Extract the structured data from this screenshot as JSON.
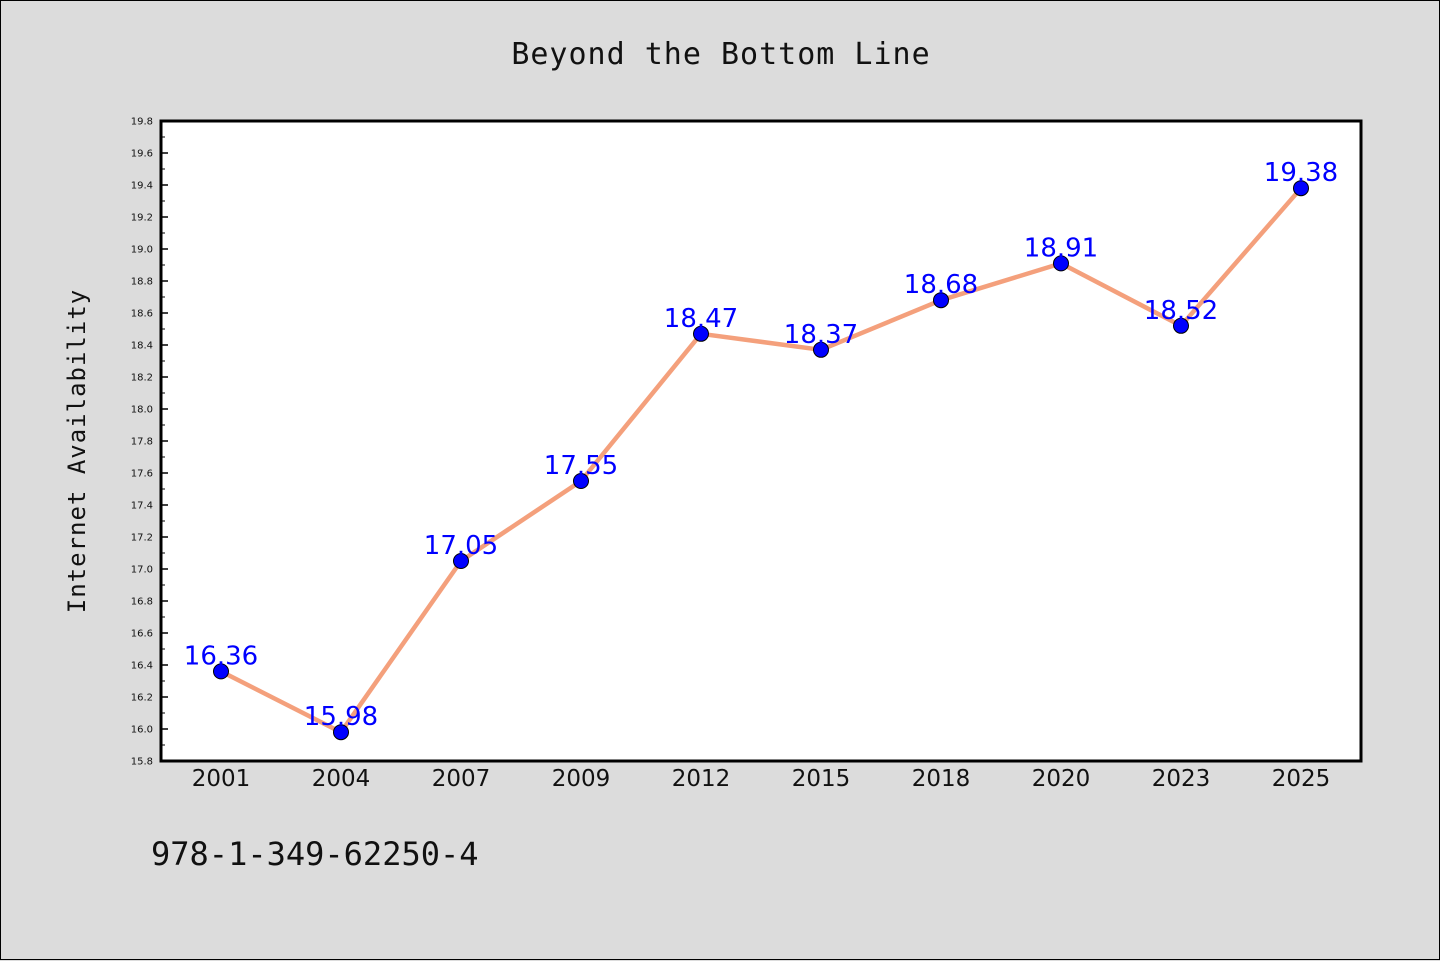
{
  "chart_data": {
    "type": "line",
    "title": "Beyond the Bottom Line",
    "xlabel": "",
    "ylabel": "Internet Availability",
    "categories": [
      "2001",
      "2004",
      "2007",
      "2009",
      "2012",
      "2015",
      "2018",
      "2020",
      "2023",
      "2025"
    ],
    "series": [
      {
        "values": [
          16.36,
          15.98,
          17.05,
          17.55,
          18.47,
          18.37,
          18.68,
          18.91,
          18.52,
          19.38
        ],
        "labels": [
          "16.36",
          "15.98",
          "17.05",
          "17.55",
          "18.47",
          "18.37",
          "18.68",
          "18.91",
          "18.52",
          "19.38"
        ]
      }
    ],
    "ylim": [
      15.8,
      19.8
    ],
    "yticks": [
      "15.8",
      "16.0",
      "16.2",
      "16.4",
      "16.6",
      "16.8",
      "17.0",
      "17.2",
      "17.4",
      "17.6",
      "17.8",
      "18.0",
      "18.2",
      "18.4",
      "18.6",
      "18.8",
      "19.0",
      "19.2",
      "19.4",
      "19.6",
      "19.8"
    ],
    "grid": false,
    "colors": {
      "line": "#f4a07c",
      "marker": "#0000ff",
      "label": "#0000ff"
    }
  },
  "footer": {
    "code": "978-1-349-62250-4"
  }
}
